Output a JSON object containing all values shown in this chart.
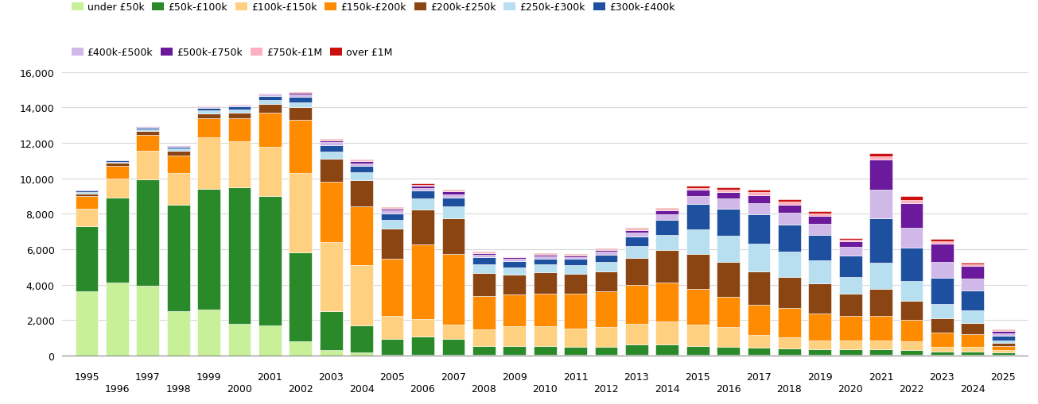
{
  "years": [
    1995,
    1996,
    1997,
    1998,
    1999,
    2000,
    2001,
    2002,
    2003,
    2004,
    2005,
    2006,
    2007,
    2008,
    2009,
    2010,
    2011,
    2012,
    2013,
    2014,
    2015,
    2016,
    2017,
    2018,
    2019,
    2020,
    2021,
    2022,
    2023,
    2024,
    2025
  ],
  "bands": [
    "under £50k",
    "£50k-£100k",
    "£100k-£150k",
    "£150k-£200k",
    "£200k-£250k",
    "£250k-£300k",
    "£300k-£400k",
    "£400k-£500k",
    "£500k-£750k",
    "£750k-£1M",
    "over £1M"
  ],
  "colors": [
    "#c8f098",
    "#2a8a2a",
    "#ffd080",
    "#ff8c00",
    "#8b4513",
    "#b8dff0",
    "#1e50a0",
    "#d0b8e8",
    "#6a1a9a",
    "#ffb0c0",
    "#cc1010"
  ],
  "data": {
    "under £50k": [
      3600,
      4100,
      3950,
      2500,
      2600,
      1800,
      1700,
      800,
      300,
      150,
      50,
      50,
      50,
      50,
      50,
      50,
      50,
      50,
      50,
      50,
      50,
      50,
      50,
      50,
      50,
      50,
      50,
      50,
      50,
      50,
      50
    ],
    "£50k-£100k": [
      3700,
      4800,
      6000,
      6000,
      6800,
      7700,
      7300,
      5000,
      2200,
      1550,
      900,
      1000,
      900,
      500,
      500,
      500,
      450,
      450,
      550,
      550,
      500,
      450,
      400,
      350,
      300,
      300,
      300,
      250,
      150,
      150,
      100
    ],
    "£100k-£150k": [
      1000,
      1100,
      1600,
      1800,
      2900,
      2600,
      2800,
      4500,
      3900,
      3400,
      1300,
      1000,
      800,
      900,
      1100,
      1100,
      1000,
      1100,
      1200,
      1300,
      1200,
      1100,
      700,
      600,
      500,
      500,
      500,
      500,
      300,
      300,
      150
    ],
    "£150k-£200k": [
      700,
      700,
      900,
      1000,
      1100,
      1300,
      1900,
      3000,
      3400,
      3300,
      3200,
      4200,
      4000,
      1900,
      1800,
      1850,
      2000,
      2000,
      2200,
      2200,
      2000,
      1700,
      1700,
      1700,
      1500,
      1400,
      1400,
      1200,
      800,
      700,
      250
    ],
    "£200k-£250k": [
      150,
      160,
      220,
      250,
      280,
      310,
      500,
      700,
      1300,
      1500,
      1700,
      2000,
      2000,
      1300,
      1100,
      1200,
      1100,
      1150,
      1500,
      1850,
      2000,
      2000,
      1900,
      1750,
      1700,
      1250,
      1500,
      1100,
      800,
      650,
      150
    ],
    "£250k-£300k": [
      80,
      80,
      110,
      120,
      150,
      160,
      220,
      300,
      400,
      450,
      500,
      600,
      650,
      500,
      430,
      430,
      480,
      530,
      680,
      850,
      1350,
      1450,
      1550,
      1400,
      1300,
      950,
      1500,
      1100,
      800,
      700,
      150
    ],
    "£300k-£400k": [
      70,
      70,
      80,
      100,
      150,
      180,
      220,
      300,
      370,
      350,
      380,
      450,
      500,
      380,
      340,
      340,
      360,
      400,
      550,
      850,
      1450,
      1550,
      1650,
      1550,
      1450,
      1200,
      2500,
      1900,
      1500,
      1100,
      250
    ],
    "£400k-£500k": [
      30,
      30,
      40,
      50,
      60,
      70,
      80,
      120,
      170,
      150,
      150,
      170,
      210,
      150,
      130,
      130,
      130,
      160,
      220,
      320,
      470,
      560,
      650,
      650,
      650,
      470,
      1600,
      1100,
      900,
      700,
      150
    ],
    "£500k-£750k": [
      20,
      20,
      30,
      35,
      45,
      55,
      65,
      90,
      110,
      100,
      100,
      120,
      140,
      100,
      90,
      90,
      90,
      110,
      140,
      210,
      320,
      370,
      460,
      450,
      420,
      320,
      1700,
      1400,
      1000,
      700,
      150
    ],
    "£750k-£1M": [
      8,
      8,
      12,
      15,
      18,
      20,
      25,
      35,
      45,
      45,
      45,
      55,
      65,
      45,
      38,
      38,
      38,
      45,
      58,
      80,
      120,
      140,
      170,
      170,
      155,
      115,
      180,
      190,
      150,
      90,
      25
    ],
    "over £1M": [
      8,
      8,
      12,
      12,
      16,
      16,
      25,
      35,
      45,
      45,
      45,
      55,
      65,
      45,
      35,
      35,
      35,
      45,
      55,
      70,
      110,
      130,
      150,
      150,
      130,
      90,
      180,
      190,
      140,
      90,
      25
    ]
  },
  "ylim": [
    0,
    16000
  ],
  "yticks": [
    0,
    2000,
    4000,
    6000,
    8000,
    10000,
    12000,
    14000,
    16000
  ],
  "background": "#ffffff",
  "grid_color": "#d8d8d8",
  "legend_row1": [
    "under £50k",
    "£50k-£100k",
    "£100k-£150k",
    "£150k-£200k",
    "£200k-£250k",
    "£250k-£300k",
    "£300k-£400k"
  ],
  "legend_row2": [
    "£400k-£500k",
    "£500k-£750k",
    "£750k-£1M",
    "over £1M"
  ]
}
